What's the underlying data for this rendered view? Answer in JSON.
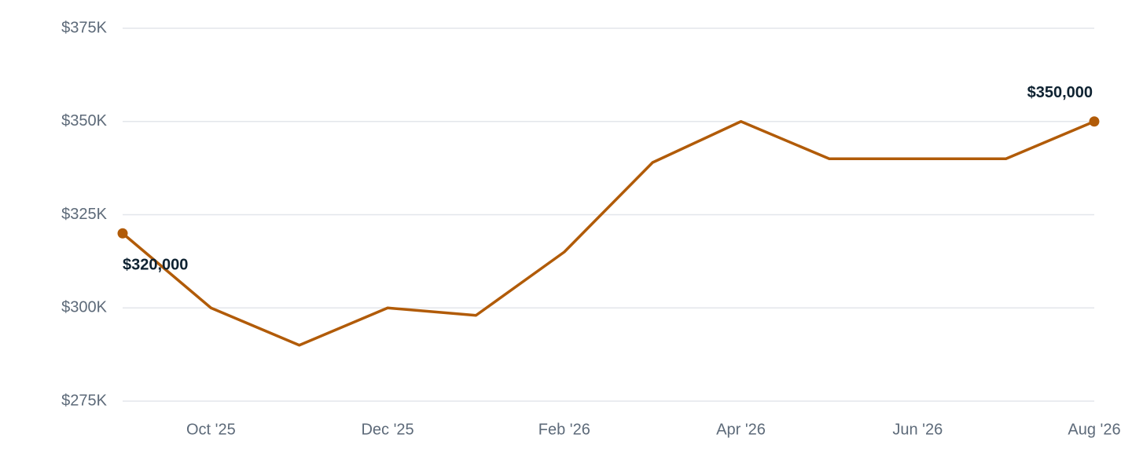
{
  "chart_data": {
    "type": "line",
    "categories": [
      null,
      "Oct '25",
      null,
      "Dec '25",
      null,
      "Feb '26",
      null,
      "Apr '26",
      null,
      "Jun '26",
      null,
      "Aug '26"
    ],
    "series": [
      {
        "color": "#b15b08",
        "values": [
          320000,
          300000,
          290000,
          300000,
          298000,
          315000,
          339000,
          350000,
          340000,
          340000,
          340000,
          350000
        ],
        "value_labels": [
          "$320,000",
          null,
          null,
          null,
          null,
          null,
          null,
          null,
          null,
          null,
          null,
          "$350,000"
        ]
      }
    ],
    "ylim": [
      275000,
      375000
    ],
    "yticks": [
      {
        "value": 275000,
        "label": "$275K"
      },
      {
        "value": 300000,
        "label": "$300K"
      },
      {
        "value": 325000,
        "label": "$325K"
      },
      {
        "value": 350000,
        "label": "$350K"
      },
      {
        "value": 375000,
        "label": "$375K"
      }
    ],
    "grid": true
  }
}
